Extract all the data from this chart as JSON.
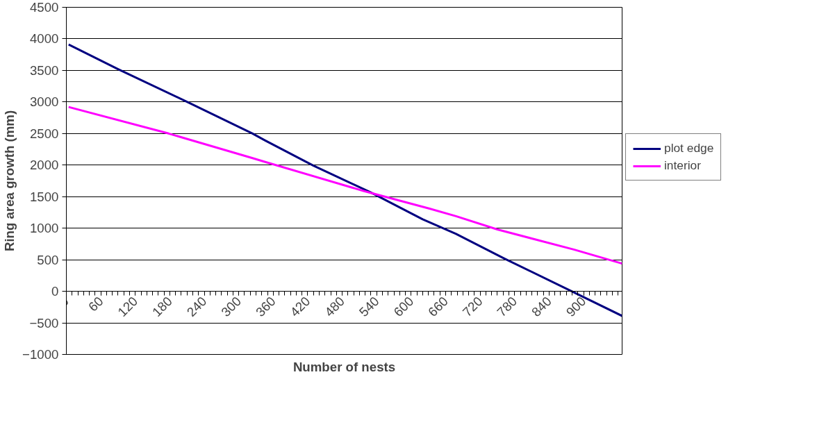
{
  "chart_data": {
    "type": "line",
    "xlabel": "Number of nests",
    "ylabel": "Ring area growth (mm)",
    "xlim": [
      0,
      967
    ],
    "xticks": [
      0,
      60,
      120,
      180,
      240,
      300,
      360,
      420,
      480,
      540,
      600,
      660,
      720,
      780,
      840,
      900
    ],
    "ylim": [
      -1000,
      4500
    ],
    "yticks": [
      -1000,
      -500,
      0,
      500,
      1000,
      1500,
      2000,
      2500,
      3000,
      3500,
      4000,
      4500
    ],
    "grid": "y",
    "legend": "right",
    "marker": "none",
    "line_style": "solid",
    "series": [
      {
        "name": "plot edge",
        "color": "#000080",
        "x": [
          4,
          90,
          213,
          324,
          346,
          430,
          529,
          620,
          678,
          762,
          877,
          967
        ],
        "values": [
          3910,
          3520,
          2990,
          2500,
          2390,
          1990,
          1570,
          1140,
          910,
          520,
          10,
          -390
        ]
      },
      {
        "name": "interior",
        "color": "#ff00ff",
        "x": [
          4,
          178,
          324,
          346,
          517,
          632,
          678,
          750,
          884,
          967
        ],
        "values": [
          2920,
          2500,
          2110,
          2050,
          1590,
          1310,
          1190,
          980,
          660,
          440
        ]
      }
    ]
  }
}
